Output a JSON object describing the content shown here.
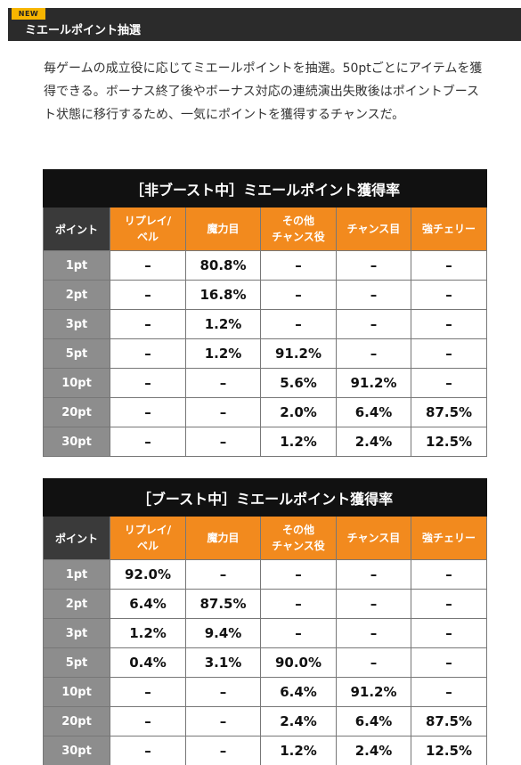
{
  "header": {
    "badge": "NEW",
    "title": "ミエールポイント抽選"
  },
  "description": "毎ゲームの成立役に応じてミエールポイントを抽選。50ptごとにアイテムを獲得できる。ボーナス終了後やボーナス対応の連続演出失敗後はポイントブースト状態に移行するため、一気にポイントを獲得するチャンスだ。",
  "tables": [
    {
      "caption": "［非ブースト中］ミエールポイント獲得率",
      "corner": "ポイント",
      "columns": [
        "リプレイ/\nベル",
        "魔力目",
        "その他\nチャンス役",
        "チャンス目",
        "強チェリー"
      ],
      "rows": [
        {
          "point": "1pt",
          "values": [
            "–",
            "80.8%",
            "–",
            "–",
            "–"
          ]
        },
        {
          "point": "2pt",
          "values": [
            "–",
            "16.8%",
            "–",
            "–",
            "–"
          ]
        },
        {
          "point": "3pt",
          "values": [
            "–",
            "1.2%",
            "–",
            "–",
            "–"
          ]
        },
        {
          "point": "5pt",
          "values": [
            "–",
            "1.2%",
            "91.2%",
            "–",
            "–"
          ]
        },
        {
          "point": "10pt",
          "values": [
            "–",
            "–",
            "5.6%",
            "91.2%",
            "–"
          ]
        },
        {
          "point": "20pt",
          "values": [
            "–",
            "–",
            "2.0%",
            "6.4%",
            "87.5%"
          ]
        },
        {
          "point": "30pt",
          "values": [
            "–",
            "–",
            "1.2%",
            "2.4%",
            "12.5%"
          ]
        }
      ]
    },
    {
      "caption": "［ブースト中］ミエールポイント獲得率",
      "corner": "ポイント",
      "columns": [
        "リプレイ/\nベル",
        "魔力目",
        "その他\nチャンス役",
        "チャンス目",
        "強チェリー"
      ],
      "rows": [
        {
          "point": "1pt",
          "values": [
            "92.0%",
            "–",
            "–",
            "–",
            "–"
          ]
        },
        {
          "point": "2pt",
          "values": [
            "6.4%",
            "87.5%",
            "–",
            "–",
            "–"
          ]
        },
        {
          "point": "3pt",
          "values": [
            "1.2%",
            "9.4%",
            "–",
            "–",
            "–"
          ]
        },
        {
          "point": "5pt",
          "values": [
            "0.4%",
            "3.1%",
            "90.0%",
            "–",
            "–"
          ]
        },
        {
          "point": "10pt",
          "values": [
            "–",
            "–",
            "6.4%",
            "91.2%",
            "–"
          ]
        },
        {
          "point": "20pt",
          "values": [
            "–",
            "–",
            "2.4%",
            "6.4%",
            "87.5%"
          ]
        },
        {
          "point": "30pt",
          "values": [
            "–",
            "–",
            "1.2%",
            "2.4%",
            "12.5%"
          ]
        }
      ]
    }
  ]
}
